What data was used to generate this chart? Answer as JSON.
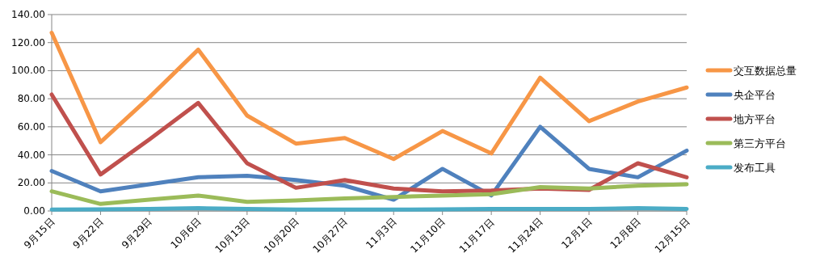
{
  "chart_data": {
    "type": "line",
    "categories": [
      "9月15日",
      "9月22日",
      "9月29日",
      "10月6日",
      "10月13日",
      "10月20日",
      "10月27日",
      "11月3日",
      "11月10日",
      "11月17日",
      "11月24日",
      "12月1日",
      "12月8日",
      "12月15日"
    ],
    "series": [
      {
        "name": "交互数据总量",
        "color": "#f79646",
        "values": [
          127,
          49,
          81,
          115,
          68,
          48,
          52,
          37,
          57,
          41,
          95,
          64,
          78,
          88
        ]
      },
      {
        "name": "央企平台",
        "color": "#4f81bd",
        "values": [
          28.5,
          14,
          19,
          24,
          25,
          22,
          18,
          8,
          30,
          11,
          60,
          30,
          24,
          43
        ]
      },
      {
        "name": "地方平台",
        "color": "#c0504d",
        "values": [
          83,
          26,
          51,
          77,
          34,
          16.5,
          22,
          16,
          14,
          14.5,
          16,
          15,
          34,
          24
        ]
      },
      {
        "name": "第三方平台",
        "color": "#9bbb59",
        "values": [
          14,
          5,
          8,
          11,
          6.5,
          7.5,
          9,
          10,
          11,
          12,
          17,
          16,
          18,
          19
        ]
      },
      {
        "name": "发布工具",
        "color": "#4bacc6",
        "values": [
          1,
          1.2,
          1.5,
          2,
          1.5,
          1,
          1,
          1,
          1.2,
          1.5,
          1.5,
          1.5,
          2,
          1.5
        ]
      }
    ],
    "ylim": [
      0,
      140
    ],
    "yticks": [
      {
        "value": 0,
        "label": "0.00"
      },
      {
        "value": 20,
        "label": "20.00"
      },
      {
        "value": 40,
        "label": "40.00"
      },
      {
        "value": 60,
        "label": "60.00"
      },
      {
        "value": 80,
        "label": "80.00"
      },
      {
        "value": 100,
        "label": "100.00"
      },
      {
        "value": 120,
        "label": "120.00"
      },
      {
        "value": 140,
        "label": "140.00"
      }
    ],
    "grid": "y",
    "legend": "right",
    "marker": "none",
    "line_style": "solid"
  }
}
